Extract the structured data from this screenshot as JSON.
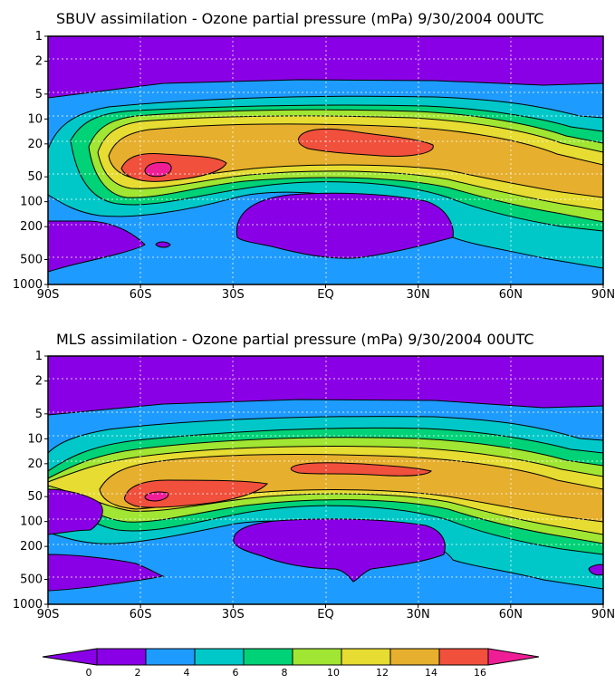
{
  "colors": {
    "levels": [
      "#8a00e6",
      "#1e9bff",
      "#00c8c8",
      "#00d278",
      "#a0e632",
      "#e6dc32",
      "#e6af2d",
      "#f0503c",
      "#f01e96"
    ],
    "contour_line": "#000000",
    "grid": "#ffffff"
  },
  "chart_data": [
    {
      "type": "heatmap",
      "title": "SBUV assimilation - Ozone partial pressure (mPa) 9/30/2004 00UTC",
      "xlabel": "",
      "ylabel": "",
      "x_ticks": [
        "90S",
        "60S",
        "30S",
        "EQ",
        "30N",
        "60N",
        "90N"
      ],
      "x_values": [
        -90,
        -60,
        -30,
        0,
        30,
        60,
        90
      ],
      "y_ticks": [
        "1",
        "2",
        "5",
        "10",
        "20",
        "50",
        "100",
        "200",
        "500",
        "1000"
      ],
      "y_values": [
        1,
        2,
        5,
        10,
        20,
        50,
        100,
        200,
        500,
        1000
      ],
      "y_scale": "log",
      "y_inverted": true,
      "xlim": [
        -90,
        90
      ],
      "ylim": [
        1000,
        1
      ],
      "grid": true,
      "contour_levels": [
        0,
        2,
        4,
        6,
        8,
        10,
        12,
        14,
        16
      ],
      "units": "mPa"
    },
    {
      "type": "heatmap",
      "title": "MLS assimilation - Ozone partial pressure (mPa) 9/30/2004 00UTC",
      "xlabel": "",
      "ylabel": "",
      "x_ticks": [
        "90S",
        "60S",
        "30S",
        "EQ",
        "30N",
        "60N",
        "90N"
      ],
      "x_values": [
        -90,
        -60,
        -30,
        0,
        30,
        60,
        90
      ],
      "y_ticks": [
        "1",
        "2",
        "5",
        "10",
        "20",
        "50",
        "100",
        "200",
        "500",
        "1000"
      ],
      "y_values": [
        1,
        2,
        5,
        10,
        20,
        50,
        100,
        200,
        500,
        1000
      ],
      "y_scale": "log",
      "y_inverted": true,
      "xlim": [
        -90,
        90
      ],
      "ylim": [
        1000,
        1
      ],
      "grid": true,
      "contour_levels": [
        0,
        2,
        4,
        6,
        8,
        10,
        12,
        14,
        16
      ],
      "units": "mPa"
    }
  ],
  "colorbar": {
    "labels": [
      "0",
      "2",
      "4",
      "6",
      "8",
      "10",
      "12",
      "14",
      "16"
    ],
    "values": [
      0,
      2,
      4,
      6,
      8,
      10,
      12,
      14,
      16
    ]
  }
}
